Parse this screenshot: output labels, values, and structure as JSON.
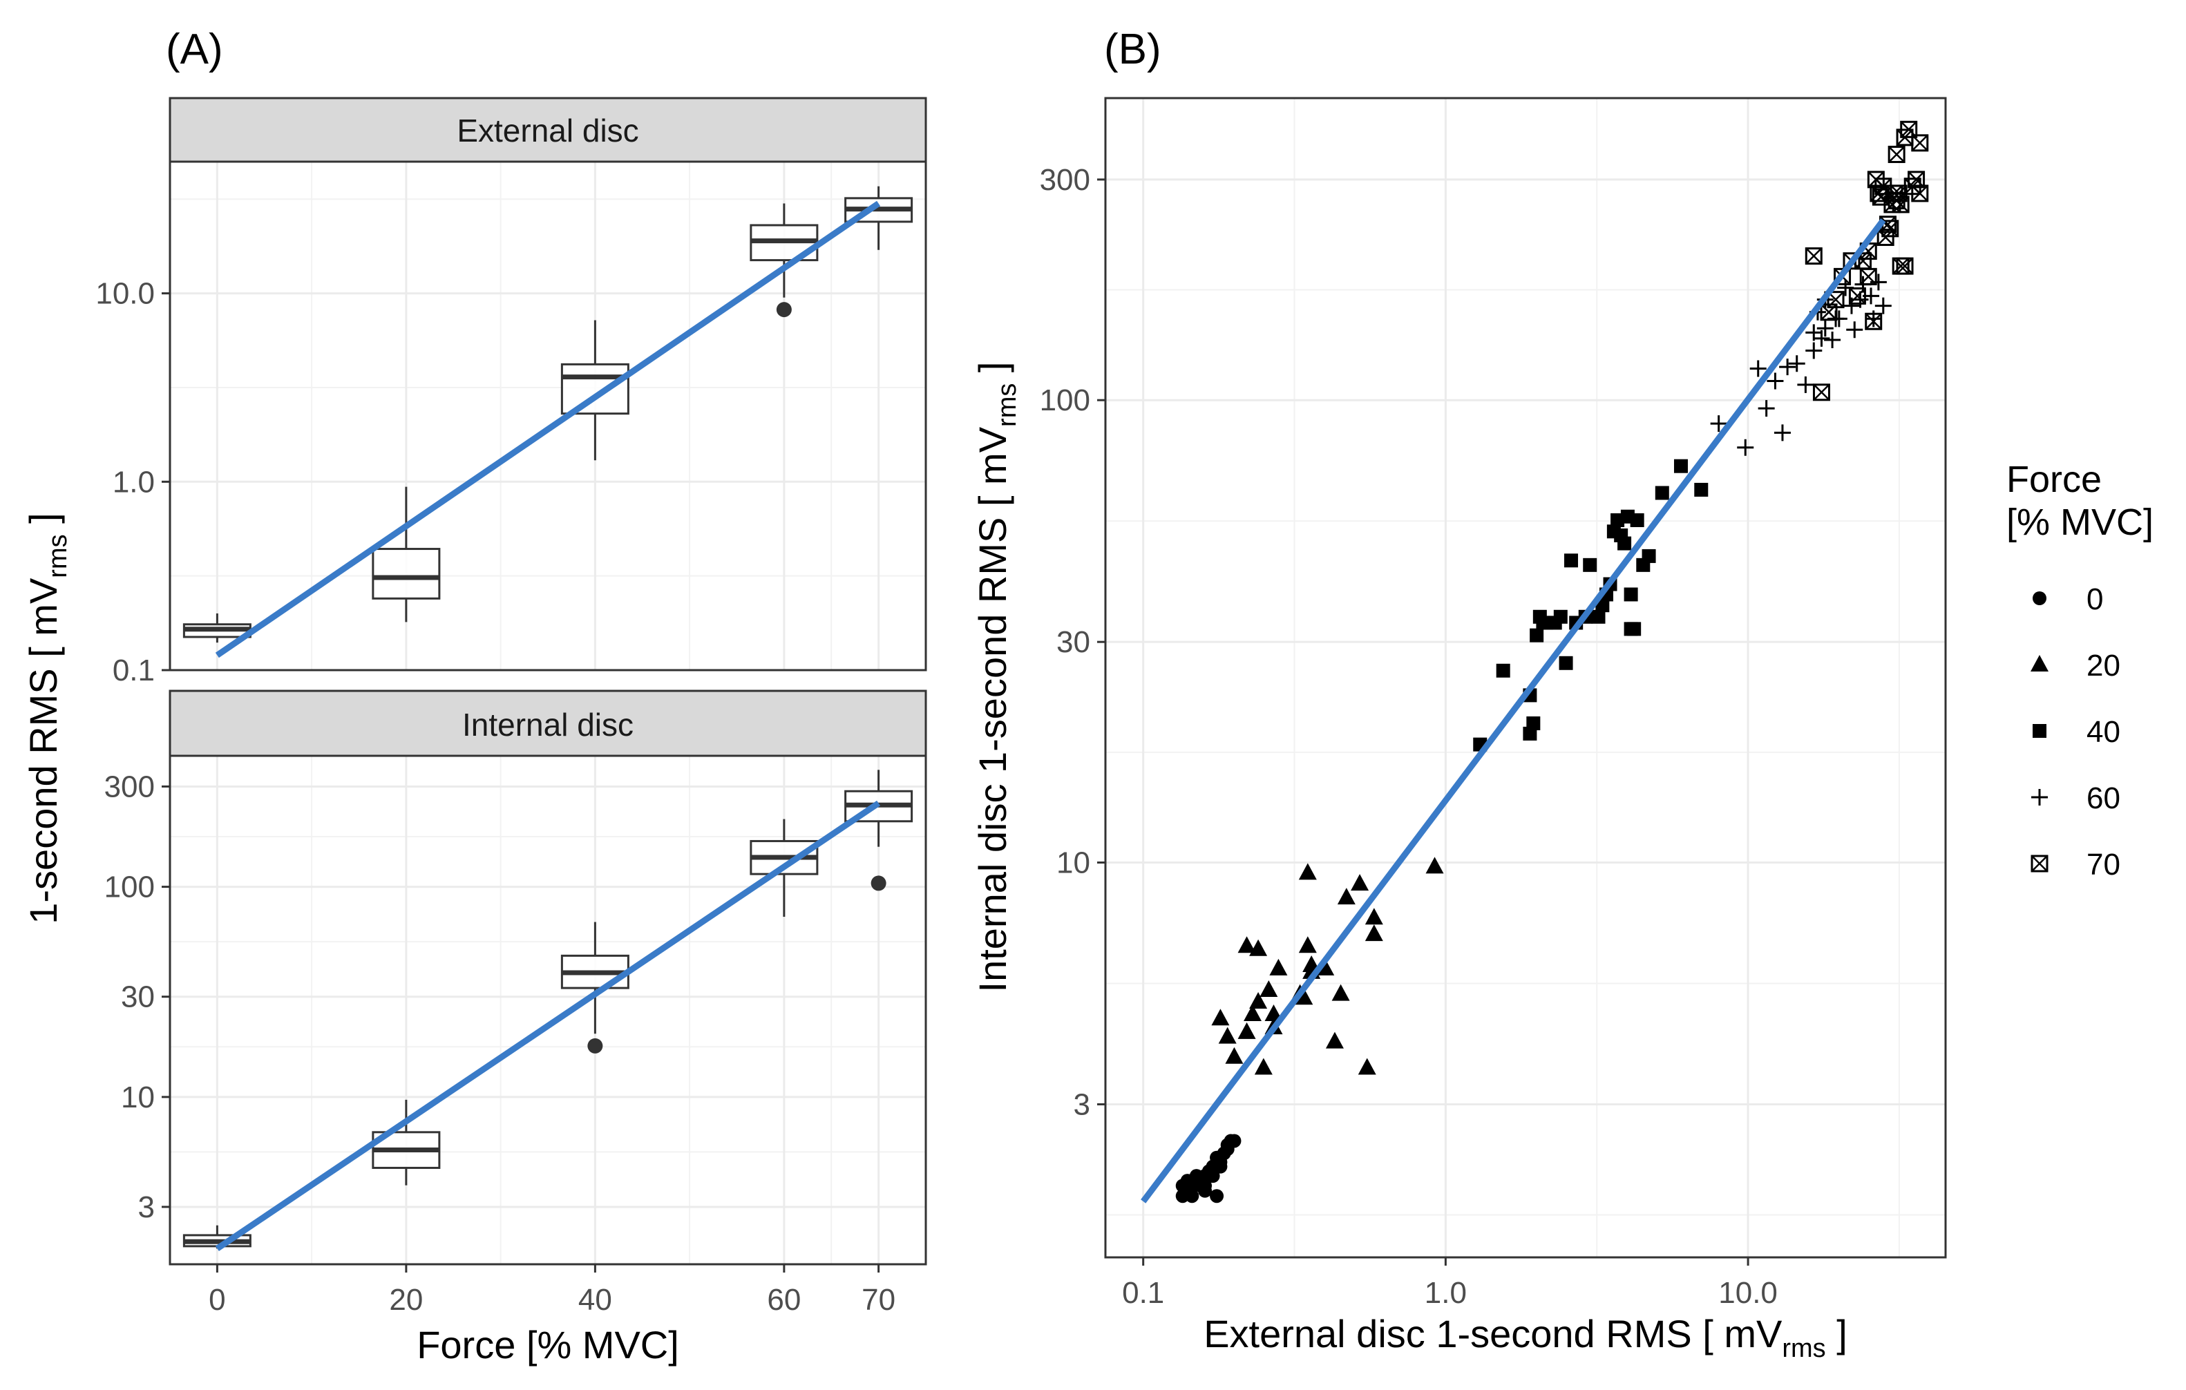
{
  "figure": {
    "panel_a_label": "(A)",
    "panel_b_label": "(B)"
  },
  "colors": {
    "fit_line": "#3a7bc8",
    "box_stroke": "#333333",
    "grid": "#ebebeb",
    "strip_fill": "#d9d9d9",
    "points": "#000000"
  },
  "chart_data": [
    {
      "type": "boxplot",
      "panel": "(A)",
      "ylabel_main": "1-second RMS [ mV",
      "ylabel_sub": "rms",
      "ylabel_end": " ]",
      "xlabel": "Force [% MVC]",
      "x_scale": "linear",
      "y_scale": "log10",
      "x_ticks": [
        0,
        20,
        40,
        60,
        70
      ],
      "x_tick_labels": [
        "0",
        "20",
        "40",
        "60",
        "70"
      ],
      "xlim": [
        -5,
        75
      ],
      "facets": [
        {
          "strip": "External disc",
          "ylim": [
            0.1,
            50
          ],
          "y_ticks": [
            0.1,
            1.0,
            10.0
          ],
          "y_tick_labels": [
            "0.1",
            "1.0",
            "10.0"
          ],
          "boxes": [
            {
              "x": 0,
              "whisker_low": 0.14,
              "q1": 0.15,
              "median": 0.165,
              "q3": 0.175,
              "whisker_high": 0.2
            },
            {
              "x": 20,
              "whisker_low": 0.18,
              "q1": 0.24,
              "median": 0.31,
              "q3": 0.44,
              "whisker_high": 0.94
            },
            {
              "x": 40,
              "whisker_low": 1.3,
              "q1": 2.3,
              "median": 3.6,
              "q3": 4.2,
              "whisker_high": 7.2
            },
            {
              "x": 60,
              "whisker_low": 9.5,
              "q1": 15,
              "median": 19,
              "q3": 23,
              "whisker_high": 30
            },
            {
              "x": 70,
              "whisker_low": 17,
              "q1": 24,
              "median": 28,
              "q3": 32,
              "whisker_high": 37
            }
          ],
          "outliers": [
            {
              "x": 60,
              "y": 8.2
            }
          ],
          "fit": {
            "x": [
              0,
              70
            ],
            "y": [
              0.12,
              30
            ]
          }
        },
        {
          "strip": "Internal disc",
          "ylim": [
            1.6,
            420
          ],
          "y_ticks": [
            3,
            10,
            30,
            100,
            300
          ],
          "y_tick_labels": [
            "3",
            "10",
            "30",
            "100",
            "300"
          ],
          "boxes": [
            {
              "x": 0,
              "whisker_low": 1.9,
              "q1": 1.95,
              "median": 2.05,
              "q3": 2.2,
              "whisker_high": 2.45
            },
            {
              "x": 20,
              "whisker_low": 3.8,
              "q1": 4.6,
              "median": 5.6,
              "q3": 6.8,
              "whisker_high": 9.7
            },
            {
              "x": 40,
              "whisker_low": 20,
              "q1": 33,
              "median": 39,
              "q3": 47,
              "whisker_high": 68
            },
            {
              "x": 60,
              "whisker_low": 72,
              "q1": 115,
              "median": 138,
              "q3": 165,
              "whisker_high": 210
            },
            {
              "x": 70,
              "whisker_low": 155,
              "q1": 205,
              "median": 245,
              "q3": 285,
              "whisker_high": 360
            }
          ],
          "outliers": [
            {
              "x": 40,
              "y": 17.5
            },
            {
              "x": 70,
              "y": 104
            }
          ],
          "fit": {
            "x": [
              0,
              70
            ],
            "y": [
              1.9,
              250
            ]
          }
        }
      ]
    },
    {
      "type": "scatter",
      "panel": "(B)",
      "xlabel_main": "External disc 1-second RMS [ mV",
      "xlabel_sub": "rms",
      "xlabel_end": " ]",
      "ylabel_main": "Internal disc 1-second RMS [ mV",
      "ylabel_sub": "rms",
      "ylabel_end": " ]",
      "x_scale": "log10",
      "y_scale": "log10",
      "xlim": [
        0.075,
        45
      ],
      "ylim": [
        1.4,
        450
      ],
      "x_ticks": [
        0.1,
        1.0,
        10.0
      ],
      "x_tick_labels": [
        "0.1",
        "1.0",
        "10.0"
      ],
      "y_ticks": [
        3,
        10,
        30,
        100,
        300
      ],
      "y_tick_labels": [
        "3",
        "10",
        "30",
        "100",
        "300"
      ],
      "fit": {
        "x": [
          0.1,
          28
        ],
        "y": [
          1.85,
          245
        ]
      },
      "legend": {
        "title_line1": "Force",
        "title_line2": "[% MVC]",
        "position": "right",
        "entries": [
          {
            "label": "0",
            "shape": "circle"
          },
          {
            "label": "20",
            "shape": "triangle"
          },
          {
            "label": "40",
            "shape": "square"
          },
          {
            "label": "60",
            "shape": "plus"
          },
          {
            "label": "70",
            "shape": "boxcross"
          }
        ]
      },
      "series": [
        {
          "name": "0",
          "shape": "circle",
          "points": [
            [
              0.135,
              1.9
            ],
            [
              0.14,
              1.95
            ],
            [
              0.145,
              2.0
            ],
            [
              0.15,
              2.05
            ],
            [
              0.155,
              2.0
            ],
            [
              0.16,
              2.1
            ],
            [
              0.165,
              2.15
            ],
            [
              0.17,
              2.2
            ],
            [
              0.175,
              2.3
            ],
            [
              0.18,
              2.25
            ],
            [
              0.185,
              2.35
            ],
            [
              0.19,
              2.45
            ],
            [
              0.195,
              2.5
            ],
            [
              0.2,
              2.5
            ],
            [
              0.14,
              2.05
            ],
            [
              0.15,
              2.1
            ],
            [
              0.16,
              2.0
            ],
            [
              0.17,
              2.1
            ],
            [
              0.18,
              2.2
            ],
            [
              0.19,
              2.4
            ],
            [
              0.175,
              1.9
            ],
            [
              0.135,
              2.0
            ],
            [
              0.145,
              1.9
            ],
            [
              0.16,
              1.95
            ]
          ]
        },
        {
          "name": "20",
          "shape": "triangle",
          "points": [
            [
              0.35,
              9.5
            ],
            [
              0.47,
              8.4
            ],
            [
              0.52,
              9.0
            ],
            [
              0.92,
              9.8
            ],
            [
              0.58,
              7.6
            ],
            [
              0.58,
              7.0
            ],
            [
              0.22,
              6.6
            ],
            [
              0.24,
              6.5
            ],
            [
              0.35,
              6.6
            ],
            [
              0.36,
              6.0
            ],
            [
              0.4,
              5.9
            ],
            [
              0.28,
              5.9
            ],
            [
              0.33,
              5.2
            ],
            [
              0.45,
              5.2
            ],
            [
              0.24,
              5.0
            ],
            [
              0.26,
              5.3
            ],
            [
              0.34,
              5.1
            ],
            [
              0.18,
              4.6
            ],
            [
              0.19,
              4.2
            ],
            [
              0.22,
              4.3
            ],
            [
              0.23,
              4.7
            ],
            [
              0.27,
              4.4
            ],
            [
              0.27,
              4.7
            ],
            [
              0.43,
              4.1
            ],
            [
              0.2,
              3.8
            ],
            [
              0.25,
              3.6
            ],
            [
              0.55,
              3.6
            ],
            [
              0.36,
              5.8
            ]
          ]
        },
        {
          "name": "40",
          "shape": "square",
          "points": [
            [
              1.3,
              18
            ],
            [
              1.55,
              26
            ],
            [
              1.9,
              23
            ],
            [
              1.9,
              19
            ],
            [
              1.95,
              20
            ],
            [
              2.0,
              31
            ],
            [
              2.05,
              34
            ],
            [
              2.1,
              33
            ],
            [
              2.15,
              33
            ],
            [
              2.3,
              33
            ],
            [
              2.4,
              34
            ],
            [
              2.5,
              27
            ],
            [
              2.6,
              45
            ],
            [
              2.7,
              33
            ],
            [
              2.9,
              34
            ],
            [
              3.0,
              44
            ],
            [
              3.2,
              34
            ],
            [
              3.3,
              36
            ],
            [
              3.4,
              38
            ],
            [
              3.6,
              52
            ],
            [
              3.7,
              55
            ],
            [
              3.8,
              51
            ],
            [
              3.9,
              49
            ],
            [
              4.0,
              56
            ],
            [
              4.1,
              38
            ],
            [
              4.1,
              32
            ],
            [
              4.2,
              32
            ],
            [
              4.3,
              55
            ],
            [
              4.5,
              44
            ],
            [
              4.7,
              46
            ],
            [
              5.2,
              63
            ],
            [
              6.0,
              72
            ],
            [
              7.0,
              64
            ],
            [
              3.5,
              40
            ]
          ]
        },
        {
          "name": "60",
          "shape": "plus",
          "points": [
            [
              8.0,
              89
            ],
            [
              9.8,
              79
            ],
            [
              10.8,
              117
            ],
            [
              11.5,
              96
            ],
            [
              12.3,
              110
            ],
            [
              13.0,
              85
            ],
            [
              13.5,
              118
            ],
            [
              14.5,
              120
            ],
            [
              15.5,
              108
            ],
            [
              16.5,
              128
            ],
            [
              16.5,
              140
            ],
            [
              17.0,
              155
            ],
            [
              17.5,
              136
            ],
            [
              18.0,
              165
            ],
            [
              18.0,
              143
            ],
            [
              19.0,
              135
            ],
            [
              19.5,
              150
            ],
            [
              20.0,
              150
            ],
            [
              21.0,
              175
            ],
            [
              22.0,
              160
            ],
            [
              22.5,
              142
            ],
            [
              23.5,
              165
            ],
            [
              24.0,
              178
            ],
            [
              25.5,
              168
            ],
            [
              26.0,
              150
            ],
            [
              27.0,
              180
            ],
            [
              28.0,
              160
            ]
          ]
        },
        {
          "name": "70",
          "shape": "boxcross",
          "points": [
            [
              16.5,
              205
            ],
            [
              17.5,
              104
            ],
            [
              18.5,
              155
            ],
            [
              19.5,
              165
            ],
            [
              20.5,
              185
            ],
            [
              22.0,
              200
            ],
            [
              23.0,
              168
            ],
            [
              24.0,
              200
            ],
            [
              25.0,
              210
            ],
            [
              25.0,
              185
            ],
            [
              26.0,
              148
            ],
            [
              27.0,
              280
            ],
            [
              27.5,
              275
            ],
            [
              28.0,
              290
            ],
            [
              28.5,
              225
            ],
            [
              29.0,
              240
            ],
            [
              30.0,
              265
            ],
            [
              30.5,
              280
            ],
            [
              31.0,
              270
            ],
            [
              31.5,
              280
            ],
            [
              32.0,
              265
            ],
            [
              32.0,
              195
            ],
            [
              33.0,
              195
            ],
            [
              33.0,
              370
            ],
            [
              34.0,
              385
            ],
            [
              35.0,
              290
            ],
            [
              36.0,
              300
            ],
            [
              37.0,
              360
            ],
            [
              37.0,
              280
            ],
            [
              29.5,
              235
            ],
            [
              26.5,
              300
            ],
            [
              31.0,
              340
            ]
          ]
        }
      ]
    }
  ]
}
